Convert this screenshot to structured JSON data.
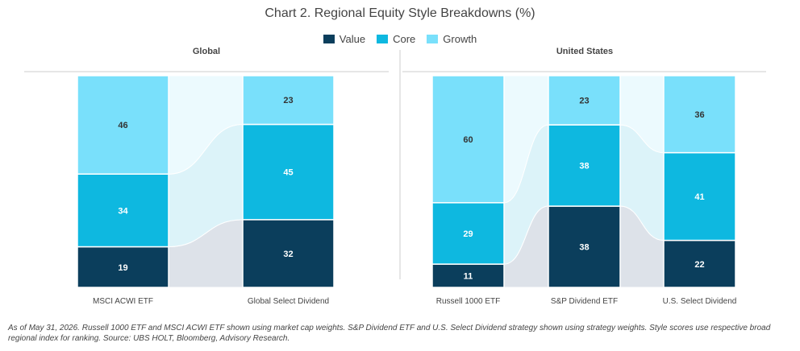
{
  "chart_data": {
    "type": "bar",
    "stacked": true,
    "title": "Chart 2. Regional Equity Style Breakdowns (%)",
    "legend_placement": "top",
    "legend": [
      "Value",
      "Core",
      "Growth"
    ],
    "colors": {
      "Value": "#0b3e5c",
      "Core": "#0eb8e0",
      "Growth": "#79e0fb"
    },
    "panels": [
      {
        "title": "Global",
        "categories": [
          "MSCI ACWI ETF",
          "Global Select Dividend"
        ],
        "series": [
          {
            "name": "Value",
            "values": [
              19,
              32
            ]
          },
          {
            "name": "Core",
            "values": [
              34,
              45
            ]
          },
          {
            "name": "Growth",
            "values": [
              46,
              23
            ]
          }
        ]
      },
      {
        "title": "United States",
        "categories": [
          "Russell 1000 ETF",
          "S&P Dividend ETF",
          "U.S. Select Dividend"
        ],
        "series": [
          {
            "name": "Value",
            "values": [
              11,
              38,
              22
            ]
          },
          {
            "name": "Core",
            "values": [
              29,
              38,
              41
            ]
          },
          {
            "name": "Growth",
            "values": [
              60,
              23,
              36
            ]
          }
        ]
      }
    ]
  },
  "footnote": "As of May 31, 2026. Russell 1000 ETF and MSCI ACWI ETF shown using market cap weights. S&P Dividend ETF and U.S. Select Dividend strategy shown using strategy weights. Style scores use respective broad regional index for ranking. Source: UBS HOLT, Bloomberg, Advisory Research."
}
